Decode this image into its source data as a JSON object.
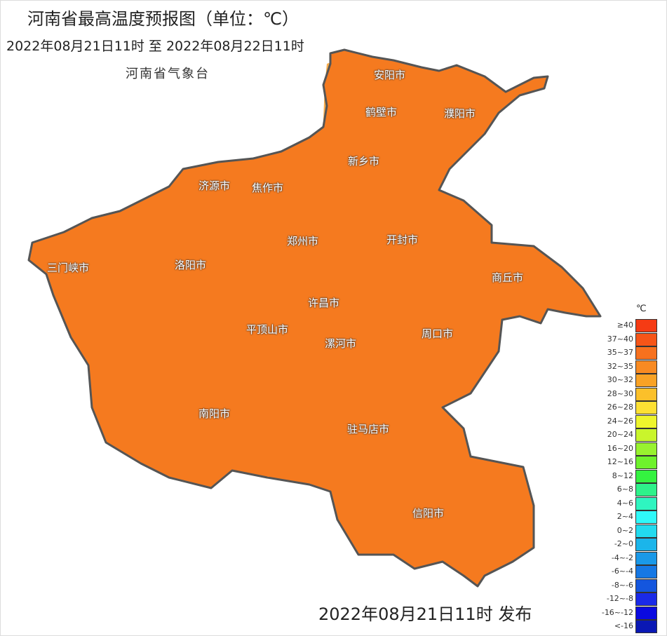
{
  "header": {
    "title": "河南省最高温度预报图（单位：℃）",
    "period": "2022年08月21日11时  至  2022年08月22日11时",
    "agency": "河南省气象台"
  },
  "footer": {
    "issued": "2022年08月21日11时 发布"
  },
  "map": {
    "base_color": "#f57a1f",
    "border_color": "#555555",
    "cities": [
      {
        "name": "安阳市"
      },
      {
        "name": "鹤壁市"
      },
      {
        "name": "濮阳市"
      },
      {
        "name": "新乡市"
      },
      {
        "name": "济源市"
      },
      {
        "name": "焦作市"
      },
      {
        "name": "郑州市"
      },
      {
        "name": "开封市"
      },
      {
        "name": "三门峡市"
      },
      {
        "name": "洛阳市"
      },
      {
        "name": "商丘市"
      },
      {
        "name": "许昌市"
      },
      {
        "name": "平顶山市"
      },
      {
        "name": "漯河市"
      },
      {
        "name": "周口市"
      },
      {
        "name": "南阳市"
      },
      {
        "name": "驻马店市"
      },
      {
        "name": "信阳市"
      }
    ]
  },
  "legend": {
    "unit": "℃",
    "items": [
      {
        "label": "≥40",
        "color": "#f53b14"
      },
      {
        "label": "37~40",
        "color": "#f65518"
      },
      {
        "label": "35~37",
        "color": "#f7711e"
      },
      {
        "label": "32~35",
        "color": "#f88a22"
      },
      {
        "label": "30~32",
        "color": "#f9a225"
      },
      {
        "label": "28~30",
        "color": "#fbc02a"
      },
      {
        "label": "26~28",
        "color": "#fde033"
      },
      {
        "label": "24~26",
        "color": "#eef52c"
      },
      {
        "label": "20~24",
        "color": "#c9f52c"
      },
      {
        "label": "16~20",
        "color": "#98f22f"
      },
      {
        "label": "12~16",
        "color": "#6ef22c"
      },
      {
        "label": "8~12",
        "color": "#34f240"
      },
      {
        "label": "6~8",
        "color": "#2ef28a"
      },
      {
        "label": "4~6",
        "color": "#2ff5c0"
      },
      {
        "label": "2~4",
        "color": "#2ff9f9"
      },
      {
        "label": "0~2",
        "color": "#22dbef"
      },
      {
        "label": "-2~0",
        "color": "#1bb5ea"
      },
      {
        "label": "-4~-2",
        "color": "#1a99e8"
      },
      {
        "label": "-6~-4",
        "color": "#1678e4"
      },
      {
        "label": "-8~-6",
        "color": "#1456de"
      },
      {
        "label": "-12~-8",
        "color": "#1a2ae8"
      },
      {
        "label": "-16~-12",
        "color": "#0a0ae0"
      },
      {
        "label": "<-16",
        "color": "#0a18b4"
      }
    ]
  }
}
